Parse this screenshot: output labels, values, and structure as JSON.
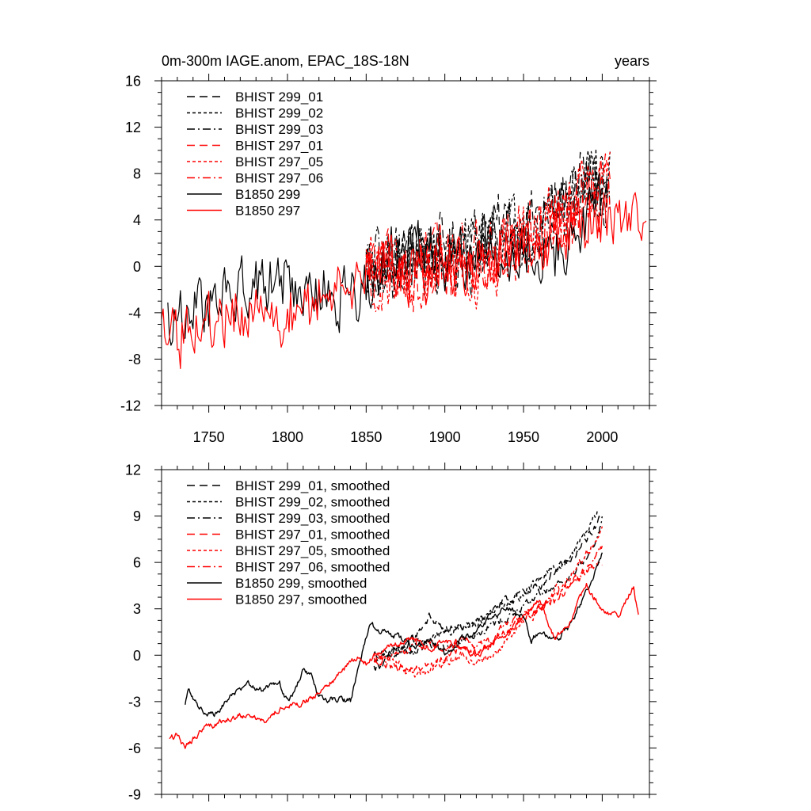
{
  "chart_data": [
    {
      "type": "line",
      "title": "0m-300m IAGE.anom, EPAC_18S-18N",
      "right_title": "years",
      "xlim": [
        1720,
        2030
      ],
      "ylim": [
        -12,
        16
      ],
      "xticks": [
        1750,
        1800,
        1850,
        1900,
        1950,
        2000
      ],
      "yticks": [
        -12,
        -8,
        -4,
        0,
        4,
        8,
        12,
        16
      ],
      "show_xtick_labels": true,
      "legend_position": "top-left",
      "series": [
        {
          "name": "BHIST 299_01",
          "color": "#000000",
          "dash": "long-dash",
          "key": "h1"
        },
        {
          "name": "BHIST 299_02",
          "color": "#000000",
          "dash": "short-dash",
          "key": "h2"
        },
        {
          "name": "BHIST 299_03",
          "color": "#000000",
          "dash": "dash-dot",
          "key": "h3"
        },
        {
          "name": "BHIST 297_01",
          "color": "#ff0000",
          "dash": "long-dash",
          "key": "h4"
        },
        {
          "name": "BHIST 297_05",
          "color": "#ff0000",
          "dash": "short-dash",
          "key": "h5"
        },
        {
          "name": "BHIST 297_06",
          "color": "#ff0000",
          "dash": "dash-dot",
          "key": "h6"
        },
        {
          "name": "B1850 299",
          "color": "#000000",
          "dash": "solid",
          "key": "b299"
        },
        {
          "name": "B1850 297",
          "color": "#ff0000",
          "dash": "solid",
          "key": "b297"
        }
      ],
      "anchors": {
        "b299": {
          "x": [
            1724,
            1740,
            1760,
            1780,
            1800,
            1820,
            1840,
            1855,
            1870,
            1890,
            1910,
            1930,
            1950,
            1970,
            1990,
            2003
          ],
          "y": [
            -4.5,
            -3.5,
            -2.8,
            -1.8,
            -1.2,
            -2.0,
            -3.0,
            -0.5,
            2.0,
            1.0,
            0.5,
            2.0,
            1.5,
            1.0,
            3.0,
            6.0
          ],
          "noise": 2.4
        },
        "b297": {
          "x": [
            1720,
            1730,
            1750,
            1770,
            1790,
            1810,
            1830,
            1850,
            1860,
            1880,
            1900,
            1920,
            1940,
            1960,
            1980,
            2000,
            2015,
            2028
          ],
          "y": [
            -6.0,
            -6.5,
            -5.0,
            -4.2,
            -4.5,
            -3.5,
            -2.2,
            -0.5,
            0.5,
            -0.8,
            0.5,
            0.0,
            1.0,
            1.5,
            3.5,
            4.0,
            3.0,
            2.8
          ],
          "noise": 2.4
        },
        "h1": {
          "x": [
            1850,
            1880,
            1910,
            1930,
            1950,
            1970,
            1990,
            2005
          ],
          "y": [
            -0.5,
            1.0,
            1.5,
            3.0,
            3.5,
            5.0,
            7.5,
            6.5
          ],
          "noise": 2.8
        },
        "h2": {
          "x": [
            1850,
            1880,
            1910,
            1930,
            1950,
            1970,
            1990,
            2005
          ],
          "y": [
            0.0,
            0.5,
            1.0,
            2.5,
            3.0,
            5.5,
            8.5,
            7.5
          ],
          "noise": 2.8
        },
        "h3": {
          "x": [
            1850,
            1880,
            1910,
            1930,
            1950,
            1970,
            1990,
            2005
          ],
          "y": [
            -0.5,
            1.0,
            0.5,
            2.0,
            3.5,
            4.5,
            7.0,
            6.0
          ],
          "noise": 2.8
        },
        "h4": {
          "x": [
            1850,
            1880,
            1910,
            1930,
            1950,
            1970,
            1990,
            2005
          ],
          "y": [
            -0.5,
            -1.0,
            0.0,
            1.0,
            2.5,
            4.0,
            5.5,
            7.0
          ],
          "noise": 2.8
        },
        "h5": {
          "x": [
            1850,
            1880,
            1910,
            1930,
            1950,
            1970,
            1990,
            2005
          ],
          "y": [
            0.0,
            -1.5,
            0.0,
            -0.5,
            2.0,
            4.5,
            6.5,
            8.0
          ],
          "noise": 2.8
        },
        "h6": {
          "x": [
            1850,
            1880,
            1910,
            1930,
            1950,
            1970,
            1990,
            2005
          ],
          "y": [
            -0.5,
            -0.5,
            1.0,
            0.5,
            2.5,
            3.5,
            6.0,
            7.0
          ],
          "noise": 2.8
        }
      }
    },
    {
      "type": "line",
      "title": "",
      "right_title": "",
      "xlim": [
        1720,
        2030
      ],
      "ylim": [
        -9,
        12
      ],
      "xticks": [
        1750,
        1800,
        1850,
        1900,
        1950,
        2000
      ],
      "yticks": [
        -9,
        -6,
        -3,
        0,
        3,
        6,
        9,
        12
      ],
      "show_xtick_labels": false,
      "legend_position": "top-left",
      "series": [
        {
          "name": "BHIST 299_01, smoothed",
          "color": "#000000",
          "dash": "long-dash",
          "key": "h1"
        },
        {
          "name": "BHIST 299_02, smoothed",
          "color": "#000000",
          "dash": "short-dash",
          "key": "h2"
        },
        {
          "name": "BHIST 299_03, smoothed",
          "color": "#000000",
          "dash": "dash-dot",
          "key": "h3"
        },
        {
          "name": "BHIST 297_01, smoothed",
          "color": "#ff0000",
          "dash": "long-dash",
          "key": "h4"
        },
        {
          "name": "BHIST 297_05, smoothed",
          "color": "#ff0000",
          "dash": "short-dash",
          "key": "h5"
        },
        {
          "name": "BHIST 297_06, smoothed",
          "color": "#ff0000",
          "dash": "dash-dot",
          "key": "h6"
        },
        {
          "name": "B1850 299, smoothed",
          "color": "#000000",
          "dash": "solid",
          "key": "b299"
        },
        {
          "name": "B1850 297, smoothed",
          "color": "#ff0000",
          "dash": "solid",
          "key": "b297"
        }
      ],
      "anchors": {
        "b299": {
          "x": [
            1735,
            1737,
            1745,
            1755,
            1765,
            1775,
            1785,
            1795,
            1800,
            1805,
            1810,
            1815,
            1820,
            1830,
            1840,
            1845,
            1852,
            1860,
            1870,
            1880,
            1890,
            1900,
            1910,
            1920,
            1930,
            1940,
            1950,
            1955,
            1960,
            1970,
            1980,
            1990,
            2000
          ],
          "y": [
            -3.3,
            -2.3,
            -3.5,
            -3.8,
            -2.5,
            -2.0,
            -2.2,
            -1.8,
            -3.0,
            -2.2,
            -1.0,
            -1.2,
            -2.8,
            -2.8,
            -3.0,
            -1.0,
            2.0,
            1.5,
            1.2,
            0.5,
            1.0,
            0.0,
            1.0,
            1.5,
            2.5,
            3.0,
            2.5,
            1.0,
            1.5,
            1.0,
            2.0,
            4.0,
            6.5
          ],
          "noise": 0.3
        },
        "b297": {
          "x": [
            1725,
            1730,
            1735,
            1745,
            1755,
            1765,
            1775,
            1785,
            1795,
            1805,
            1815,
            1825,
            1835,
            1845,
            1850,
            1860,
            1870,
            1880,
            1890,
            1900,
            1910,
            1920,
            1930,
            1940,
            1950,
            1960,
            1970,
            1980,
            1985,
            1990,
            2000,
            2010,
            2020,
            2023
          ],
          "y": [
            -5.5,
            -5.2,
            -6.0,
            -4.8,
            -4.5,
            -4.0,
            -3.8,
            -4.2,
            -3.5,
            -3.2,
            -2.8,
            -2.0,
            -1.0,
            0.0,
            -0.5,
            0.3,
            0.8,
            1.0,
            0.5,
            1.0,
            0.5,
            0.0,
            0.8,
            1.5,
            2.5,
            3.5,
            1.0,
            2.0,
            3.5,
            4.5,
            3.0,
            2.5,
            4.5,
            2.5
          ],
          "noise": 0.3
        },
        "h1": {
          "x": [
            1855,
            1870,
            1880,
            1890,
            1900,
            1910,
            1920,
            1930,
            1940,
            1950,
            1960,
            1970,
            1980,
            1990,
            2000
          ],
          "y": [
            -0.8,
            0.0,
            1.0,
            2.5,
            1.5,
            1.8,
            2.0,
            3.0,
            3.5,
            4.0,
            4.5,
            5.5,
            6.0,
            7.5,
            9.0
          ],
          "noise": 0.4
        },
        "h2": {
          "x": [
            1855,
            1870,
            1880,
            1890,
            1900,
            1910,
            1920,
            1930,
            1940,
            1950,
            1960,
            1970,
            1980,
            1990,
            1997
          ],
          "y": [
            0.0,
            0.5,
            0.8,
            1.0,
            1.5,
            1.8,
            2.2,
            2.8,
            3.5,
            4.0,
            5.0,
            5.5,
            6.5,
            8.0,
            9.2
          ],
          "noise": 0.4
        },
        "h3": {
          "x": [
            1855,
            1870,
            1880,
            1890,
            1900,
            1910,
            1920,
            1930,
            1940,
            1950,
            1960,
            1970,
            1980,
            1990,
            2000
          ],
          "y": [
            -0.5,
            0.5,
            0.2,
            0.8,
            0.5,
            1.0,
            1.5,
            2.0,
            2.5,
            3.0,
            4.0,
            4.5,
            5.0,
            6.5,
            8.5
          ],
          "noise": 0.4
        },
        "h4": {
          "x": [
            1855,
            1870,
            1880,
            1890,
            1900,
            1910,
            1920,
            1930,
            1940,
            1950,
            1960,
            1970,
            1980,
            1990,
            2000
          ],
          "y": [
            -0.5,
            -0.8,
            -1.0,
            -0.5,
            0.0,
            0.5,
            0.0,
            0.8,
            1.5,
            2.5,
            3.0,
            3.5,
            4.5,
            5.5,
            6.0
          ],
          "noise": 0.4
        },
        "h5": {
          "x": [
            1855,
            1870,
            1880,
            1890,
            1900,
            1910,
            1920,
            1930,
            1940,
            1950,
            1960,
            1970,
            1980,
            1990,
            2000
          ],
          "y": [
            0.0,
            -0.5,
            -1.5,
            -1.0,
            -0.5,
            0.0,
            -0.5,
            -0.2,
            1.0,
            2.0,
            3.0,
            4.0,
            5.0,
            6.5,
            8.0
          ],
          "noise": 0.4
        },
        "h6": {
          "x": [
            1855,
            1870,
            1880,
            1890,
            1900,
            1910,
            1920,
            1930,
            1940,
            1950,
            1960,
            1970,
            1980,
            1990,
            2000
          ],
          "y": [
            -0.3,
            0.0,
            0.5,
            0.8,
            0.5,
            1.0,
            0.5,
            1.0,
            2.0,
            2.5,
            3.0,
            4.0,
            4.5,
            5.5,
            7.0
          ],
          "noise": 0.4
        }
      }
    }
  ]
}
